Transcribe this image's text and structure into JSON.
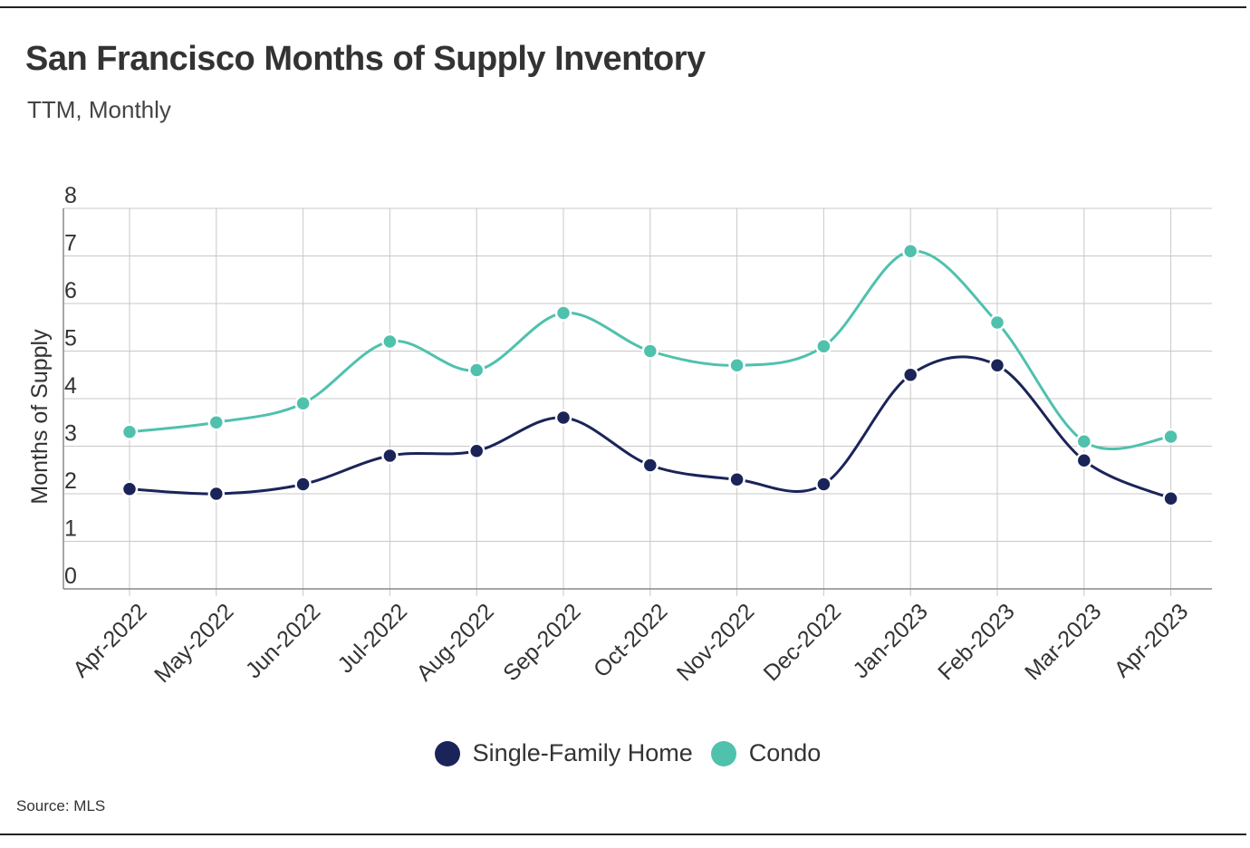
{
  "header": {
    "title": "San Francisco Months of Supply Inventory",
    "subtitle": "TTM, Monthly"
  },
  "footer": {
    "source": "Source:  MLS"
  },
  "colors": {
    "single_family": "#1b2458",
    "condo": "#4fc1ad",
    "grid": "#c8c8c8",
    "axis": "#888888"
  },
  "chart_data": {
    "type": "line",
    "title": "San Francisco Months of Supply Inventory",
    "subtitle": "TTM, Monthly",
    "xlabel": "",
    "ylabel": "Months of Supply",
    "ylim": [
      0,
      8
    ],
    "yticks": [
      0,
      1,
      2,
      3,
      4,
      5,
      6,
      7,
      8
    ],
    "grid": true,
    "legend": "bottom-center",
    "categories": [
      "Apr-2022",
      "May-2022",
      "Jun-2022",
      "Jul-2022",
      "Aug-2022",
      "Sep-2022",
      "Oct-2022",
      "Nov-2022",
      "Dec-2022",
      "Jan-2023",
      "Feb-2023",
      "Mar-2023",
      "Apr-2023"
    ],
    "series": [
      {
        "name": "Single-Family Home",
        "values": [
          2.1,
          2.0,
          2.2,
          2.8,
          2.9,
          3.6,
          2.6,
          2.3,
          2.2,
          4.5,
          4.7,
          2.7,
          1.9
        ]
      },
      {
        "name": "Condo",
        "values": [
          3.3,
          3.5,
          3.9,
          5.2,
          4.6,
          5.8,
          5.0,
          4.7,
          5.1,
          7.1,
          5.6,
          3.1,
          3.2
        ]
      }
    ]
  }
}
